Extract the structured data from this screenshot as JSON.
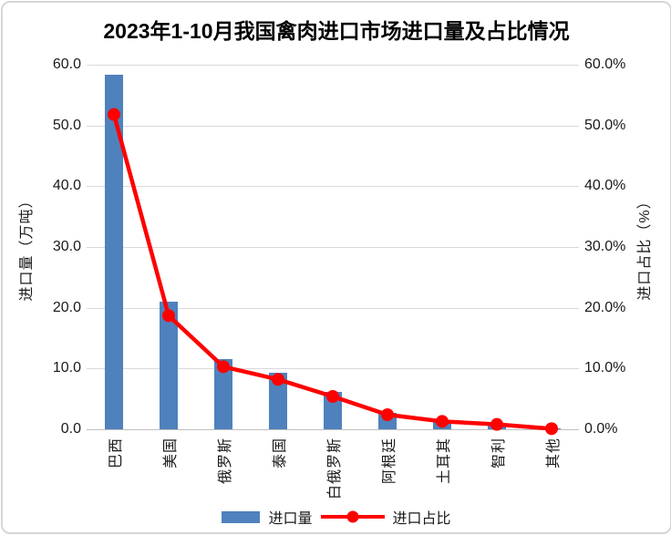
{
  "chart_data": {
    "type": "combo-bar-line",
    "title": "2023年1-10月我国禽肉进口市场进口量及占比情况",
    "categories": [
      "巴西",
      "美国",
      "俄罗斯",
      "泰国",
      "白俄罗斯",
      "阿根廷",
      "土耳其",
      "智利",
      "其他"
    ],
    "series": [
      {
        "name": "进口量",
        "type": "bar",
        "axis": "left",
        "color": "#4F81BD",
        "values": [
          58.3,
          21.0,
          11.6,
          9.3,
          6.1,
          2.7,
          1.2,
          0.8,
          0.1
        ]
      },
      {
        "name": "进口占比",
        "type": "line",
        "axis": "right",
        "color": "#FF0000",
        "values": [
          51.8,
          18.7,
          10.3,
          8.2,
          5.4,
          2.4,
          1.3,
          0.8,
          0.1
        ]
      }
    ],
    "y_left": {
      "title": "进口量（万吨）",
      "min": 0,
      "max": 60,
      "step": 10,
      "tick_labels": [
        "0.0",
        "10.0",
        "20.0",
        "30.0",
        "40.0",
        "50.0",
        "60.0"
      ]
    },
    "y_right": {
      "title": "进口占比（%）",
      "min": 0,
      "max": 60,
      "step": 10,
      "tick_labels": [
        "0.0%",
        "10.0%",
        "20.0%",
        "30.0%",
        "40.0%",
        "50.0%",
        "60.0%"
      ]
    },
    "legend": {
      "position": "bottom"
    },
    "grid": true,
    "colors": {
      "bar": "#4F81BD",
      "line": "#FF0000",
      "marker": "#FF0000",
      "gridline": "#D9D9D9",
      "axis_line": "#BFBFBF",
      "background": "#FFFFFF",
      "border": "#D6D6D6",
      "text": "#1A1A1A"
    }
  }
}
